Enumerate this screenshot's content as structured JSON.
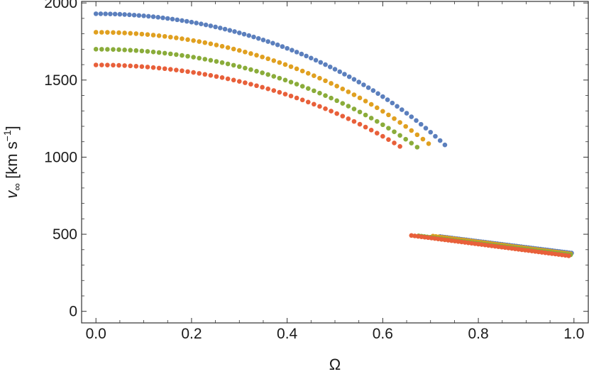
{
  "chart_data": {
    "type": "scatter",
    "title": "",
    "xlabel": "Ω",
    "ylabel": {
      "var": "v",
      "sub": "∞",
      "unit_open": " [km s",
      "sup": "−1",
      "unit_close": "]"
    },
    "xlim": [
      -0.03,
      1.03
    ],
    "ylim": [
      -75,
      2010
    ],
    "x_ticks": [
      0.0,
      0.2,
      0.4,
      0.6,
      0.8,
      1.0
    ],
    "x_tick_labels": [
      "0.0",
      "0.2",
      "0.4",
      "0.6",
      "0.8",
      "1.0"
    ],
    "y_ticks": [
      0,
      500,
      1000,
      1500,
      2000
    ],
    "y_tick_labels": [
      "0",
      "500",
      "1000",
      "1500",
      "2000"
    ],
    "grid": false,
    "legend": "none",
    "series": [
      {
        "color": "#5b7fbd",
        "fast_branch": {
          "x_start": 0.0,
          "x_end": 0.735,
          "y0": 1930,
          "y_end": 1065,
          "x_step": 0.01
        },
        "slow_branch": {
          "x_start": 0.72,
          "x_end": 0.995,
          "y_start": 485,
          "y_end": 378,
          "x_step": 0.005
        }
      },
      {
        "color": "#e0a020",
        "fast_branch": {
          "x_start": 0.0,
          "x_end": 0.705,
          "y0": 1810,
          "y_end": 1065,
          "x_step": 0.012
        },
        "slow_branch": {
          "x_start": 0.705,
          "x_end": 0.995,
          "y_start": 488,
          "y_end": 372,
          "x_step": 0.006
        }
      },
      {
        "color": "#8aac3a",
        "fast_branch": {
          "x_start": 0.0,
          "x_end": 0.675,
          "y0": 1700,
          "y_end": 1058,
          "x_step": 0.012
        },
        "slow_branch": {
          "x_start": 0.675,
          "x_end": 0.995,
          "y_start": 490,
          "y_end": 366,
          "x_step": 0.006
        }
      },
      {
        "color": "#e8603a",
        "fast_branch": {
          "x_start": 0.0,
          "x_end": 0.64,
          "y0": 1598,
          "y_end": 1062,
          "x_step": 0.012
        },
        "slow_branch": {
          "x_start": 0.66,
          "x_end": 0.995,
          "y_start": 492,
          "y_end": 358,
          "x_step": 0.007
        }
      }
    ]
  }
}
